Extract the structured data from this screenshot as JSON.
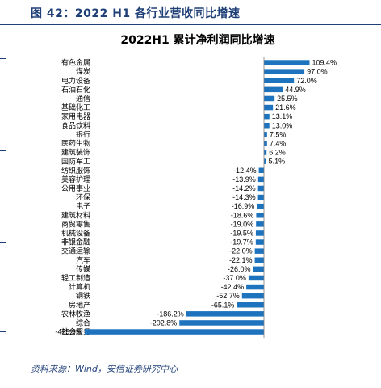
{
  "figure": {
    "caption": "图 42：2022 H1 各行业营收同比增速",
    "source": "资料来源：Wind，安信证券研究中心"
  },
  "colors": {
    "bar": "#1e73be",
    "accent": "#1f3f77"
  },
  "chart_data": {
    "type": "bar",
    "orientation": "horizontal",
    "title": "2022H1 累计净利润同比增速",
    "value_suffix": "%",
    "grid": false,
    "categories": [
      "有色金属",
      "煤炭",
      "电力设备",
      "石油石化",
      "通信",
      "基础化工",
      "家用电器",
      "食品饮料",
      "银行",
      "医药生物",
      "建筑装饰",
      "国防军工",
      "纺织服饰",
      "美容护理",
      "公用事业",
      "环保",
      "电子",
      "建筑材料",
      "商贸零售",
      "机械设备",
      "非银金融",
      "交通运输",
      "汽车",
      "传媒",
      "轻工制造",
      "计算机",
      "钢铁",
      "房地产",
      "农林牧渔",
      "综合",
      "社会服务"
    ],
    "values": [
      109.4,
      97.0,
      72.0,
      44.9,
      25.5,
      21.6,
      13.1,
      13.0,
      7.5,
      7.4,
      6.2,
      5.1,
      -12.4,
      -13.9,
      -14.2,
      -14.3,
      -16.9,
      -18.6,
      -19.0,
      -19.5,
      -19.7,
      -22.0,
      -22.1,
      -26.0,
      -37.0,
      -42.4,
      -52.7,
      -65.1,
      -186.2,
      -202.8,
      -429.9
    ],
    "value_labels": [
      "109.4%",
      "97.0%",
      "72.0%",
      "44.9%",
      "25.5%",
      "21.6%",
      "13.1%",
      "13.0%",
      "7.5%",
      "7.4%",
      "6.2%",
      "5.1%",
      "-12.4%",
      "-13.9%",
      "-14.2%",
      "-14.3%",
      "-16.9%",
      "-18.6%",
      "-19.0%",
      "-19.5%",
      "-19.7%",
      "-22.0%",
      "-22.1%",
      "-26.0%",
      "-37.0%",
      "-42.4%",
      "-52.7%",
      "-65.1%",
      "-186.2%",
      "-202.8%",
      "-429.9%"
    ],
    "xlim": [
      -429.9,
      109.4
    ]
  }
}
